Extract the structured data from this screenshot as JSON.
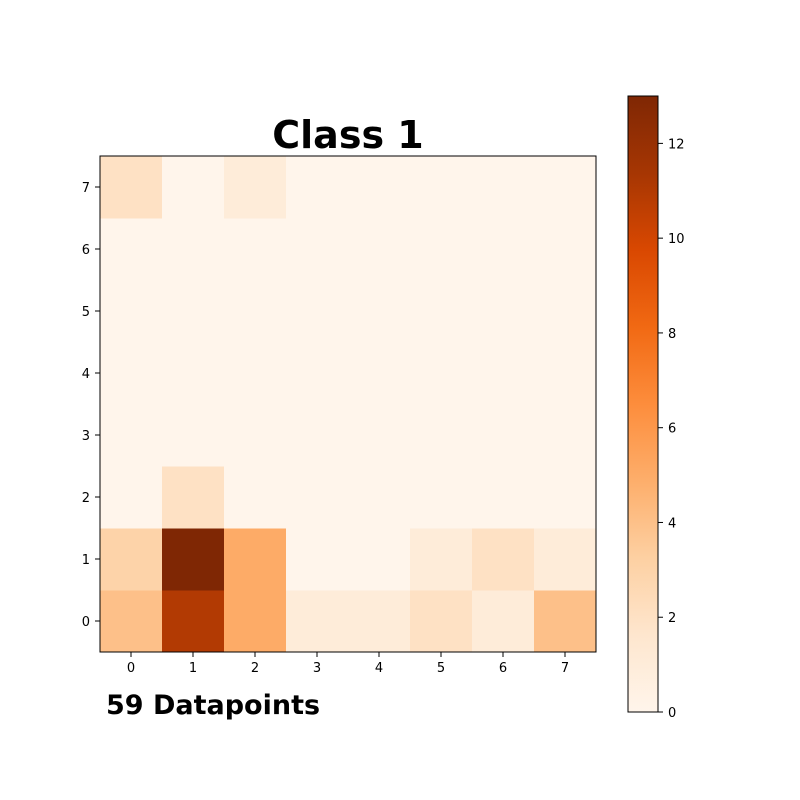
{
  "chart_data": {
    "type": "heatmap",
    "title": "Class 1",
    "footer": "59 Datapoints",
    "x_ticks": [
      "0",
      "1",
      "2",
      "3",
      "4",
      "5",
      "6",
      "7"
    ],
    "y_ticks": [
      "0",
      "1",
      "2",
      "3",
      "4",
      "5",
      "6",
      "7"
    ],
    "rows_bottom_to_top": [
      [
        4,
        11,
        5,
        1,
        1,
        2,
        1,
        4
      ],
      [
        3,
        13,
        5,
        0,
        0,
        1,
        2,
        1
      ],
      [
        0,
        2,
        0,
        0,
        0,
        0,
        0,
        0
      ],
      [
        0,
        0,
        0,
        0,
        0,
        0,
        0,
        0
      ],
      [
        0,
        0,
        0,
        0,
        0,
        0,
        0,
        0
      ],
      [
        0,
        0,
        0,
        0,
        0,
        0,
        0,
        0
      ],
      [
        0,
        0,
        0,
        0,
        0,
        0,
        0,
        0
      ],
      [
        2,
        0,
        1,
        0,
        0,
        0,
        0,
        0
      ]
    ],
    "colorbar": {
      "min": 0,
      "max": 13,
      "ticks": [
        "0",
        "2",
        "4",
        "6",
        "8",
        "10",
        "12"
      ],
      "colormap": "Oranges"
    }
  }
}
